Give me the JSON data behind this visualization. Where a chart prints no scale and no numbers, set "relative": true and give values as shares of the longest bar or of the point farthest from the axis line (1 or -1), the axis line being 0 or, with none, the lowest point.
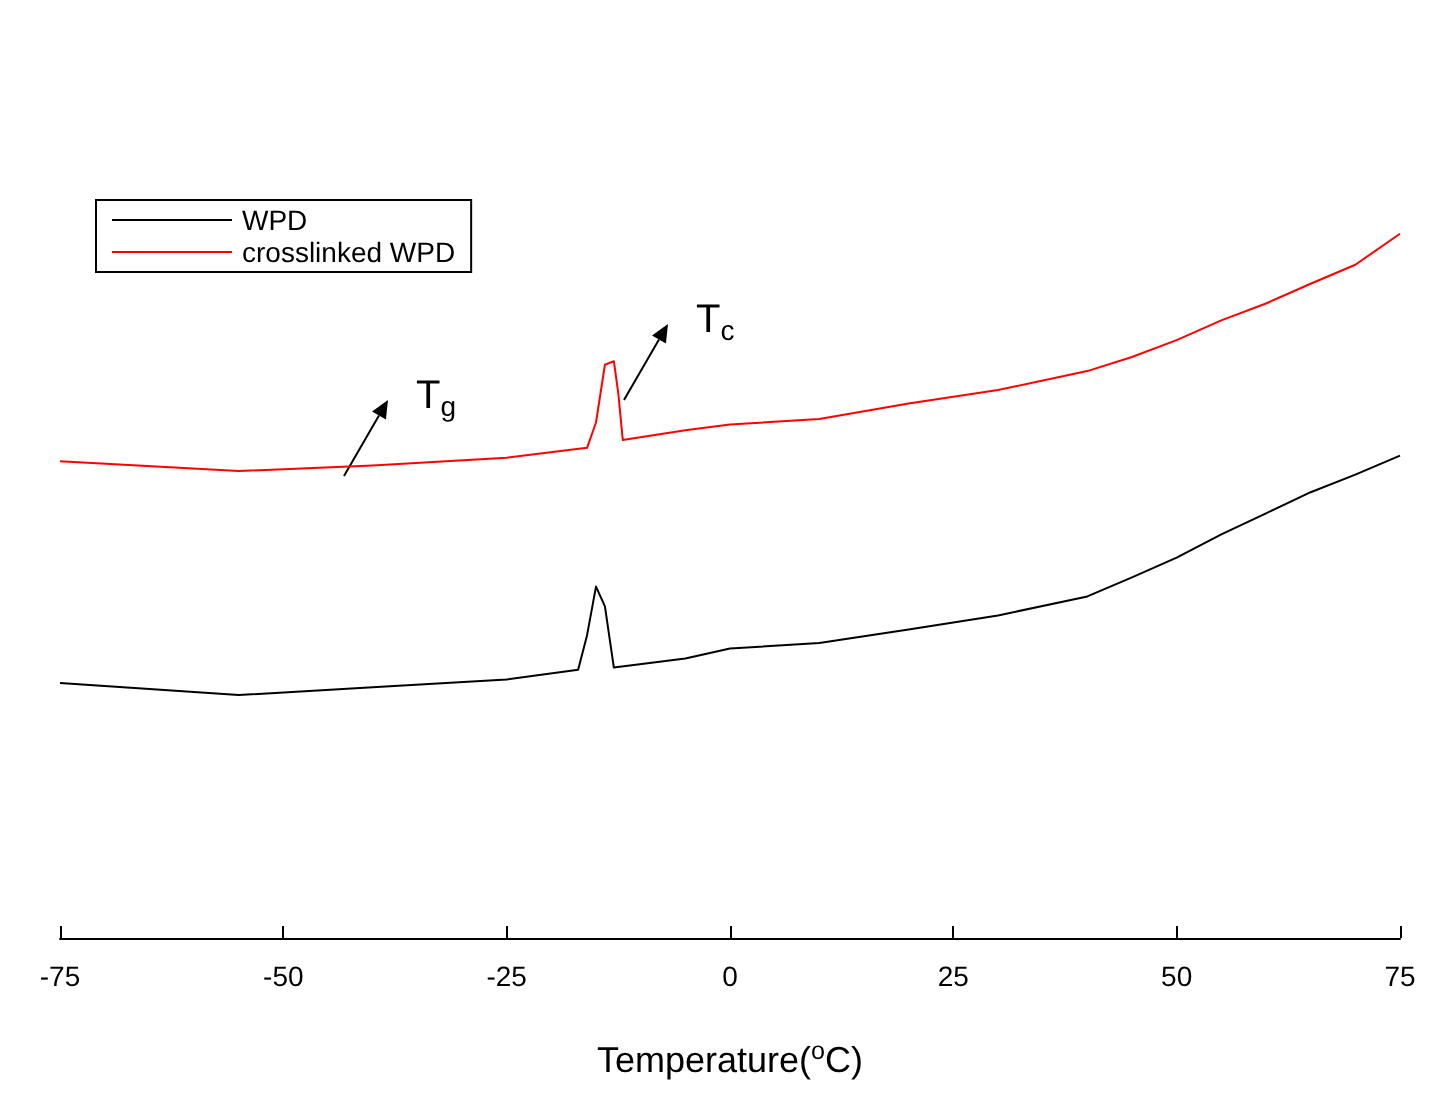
{
  "chart_data": {
    "type": "line",
    "relative": true,
    "xlabel": "Temperature($^{o}$C)",
    "xlim": [
      -75,
      75
    ],
    "xticks": [
      -75,
      -50,
      -25,
      0,
      25,
      50,
      75
    ],
    "grid": false,
    "legend": "top left",
    "marker": "none",
    "line_style": "solid",
    "series": [
      {
        "name": "WPD",
        "color": "#000000",
        "x": [
          -75,
          -55,
          -40,
          -25,
          -17,
          -16,
          -15,
          -14,
          -13,
          -5,
          0,
          10,
          20,
          30,
          40,
          45,
          50,
          55,
          60,
          65,
          70,
          75
        ],
        "values": [
          0.362,
          0.345,
          0.356,
          0.367,
          0.381,
          0.43,
          0.499,
          0.471,
          0.384,
          0.397,
          0.411,
          0.419,
          0.438,
          0.458,
          0.485,
          0.512,
          0.54,
          0.573,
          0.603,
          0.633,
          0.658,
          0.685
        ]
      },
      {
        "name": "crosslinked WPD",
        "color": "#ff0000",
        "x": [
          -75,
          -55,
          -40,
          -25,
          -16,
          -15,
          -14,
          -13,
          -12.5,
          -12,
          -5,
          0,
          10,
          20,
          30,
          40,
          45,
          50,
          55,
          60,
          65,
          70,
          75
        ],
        "values": [
          0.677,
          0.663,
          0.671,
          0.682,
          0.696,
          0.732,
          0.814,
          0.819,
          0.773,
          0.707,
          0.721,
          0.729,
          0.737,
          0.759,
          0.778,
          0.805,
          0.825,
          0.849,
          0.877,
          0.901,
          0.929,
          0.956,
          1
        ]
      }
    ],
    "annotations": [
      "T$_{g}$",
      "T$_{c}$"
    ]
  }
}
